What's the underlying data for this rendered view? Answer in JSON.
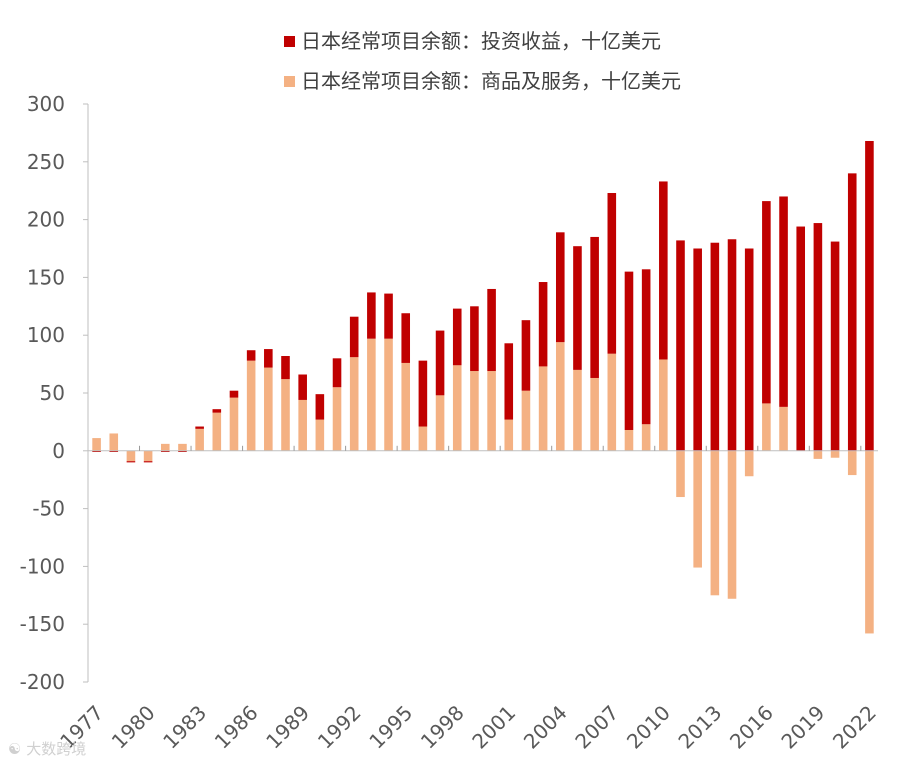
{
  "chart_data": {
    "type": "bar",
    "stacked": true,
    "title": "",
    "xlabel": "",
    "ylabel": "",
    "ylim": [
      -200,
      300
    ],
    "yticks": [
      "300",
      "250",
      "200",
      "150",
      "100",
      "50",
      "0",
      "-50",
      "-100",
      "-150",
      "-200"
    ],
    "x_tick_labels": [
      "1977",
      "1980",
      "1983",
      "1986",
      "1989",
      "1992",
      "1995",
      "1998",
      "2001",
      "2004",
      "2007",
      "2010",
      "2013",
      "2016",
      "2019",
      "2022"
    ],
    "grid": false,
    "legend_position": "top",
    "years": [
      1977,
      1978,
      1979,
      1980,
      1981,
      1982,
      1983,
      1984,
      1985,
      1986,
      1987,
      1988,
      1989,
      1990,
      1991,
      1992,
      1993,
      1994,
      1995,
      1996,
      1997,
      1998,
      1999,
      2000,
      2001,
      2002,
      2003,
      2004,
      2005,
      2006,
      2007,
      2008,
      2009,
      2010,
      2011,
      2012,
      2013,
      2014,
      2015,
      2016,
      2017,
      2018,
      2019,
      2020,
      2021,
      2022
    ],
    "series": [
      {
        "name": "日本经常项目余额：投资收益，十亿美元",
        "color": "#c00000",
        "values": [
          -1,
          -1,
          -1,
          -1,
          -1,
          -1,
          2,
          3,
          6,
          9,
          16,
          20,
          22,
          22,
          25,
          35,
          40,
          39,
          43,
          57,
          56,
          49,
          56,
          71,
          66,
          61,
          73,
          95,
          107,
          122,
          139,
          137,
          134,
          154,
          182,
          175,
          180,
          183,
          175,
          175,
          182,
          194,
          197,
          181,
          240,
          268
        ]
      },
      {
        "name": "日本经常项目余额：商品及服务，十亿美元",
        "color": "#f4b183",
        "values": [
          11,
          15,
          -9,
          -9,
          6,
          6,
          19,
          33,
          46,
          78,
          72,
          62,
          44,
          27,
          55,
          81,
          97,
          97,
          76,
          21,
          48,
          74,
          69,
          69,
          27,
          52,
          73,
          94,
          70,
          63,
          84,
          18,
          23,
          79,
          -40,
          -101,
          -125,
          -128,
          -22,
          41,
          38,
          0,
          -7,
          -6,
          -21,
          -158
        ]
      }
    ],
    "watermark": "大数跨境"
  }
}
